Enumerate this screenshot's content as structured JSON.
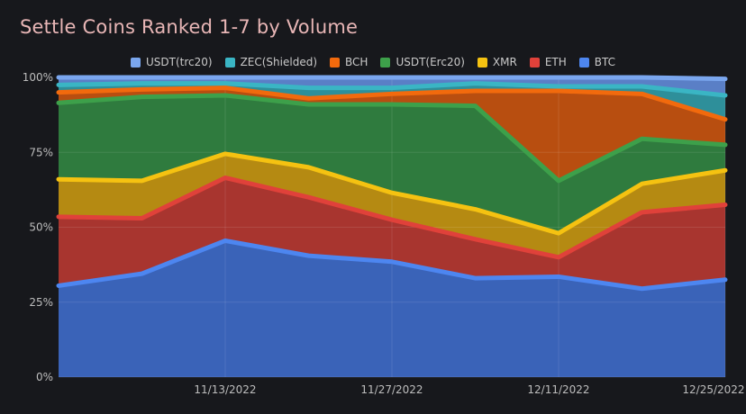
{
  "chart_data": {
    "type": "area",
    "stacked": true,
    "normalized_percent": true,
    "title": "Settle Coins Ranked 1-7 by Volume",
    "xlabel": "",
    "ylabel": "",
    "ylim": [
      0,
      100
    ],
    "y_ticks": [
      "0%",
      "25%",
      "50%",
      "75%",
      "100%"
    ],
    "y_tick_values": [
      0,
      25,
      50,
      75,
      100
    ],
    "x_tick_labels": [
      "11/13/2022",
      "11/27/2022",
      "12/11/2022",
      "12/25/2022"
    ],
    "x_tick_positions": [
      2,
      4,
      6,
      8
    ],
    "x": [
      0,
      1,
      2,
      3,
      4,
      5,
      6,
      7,
      8
    ],
    "legend_position": "top",
    "grid": true,
    "series": [
      {
        "name": "BTC",
        "color": "#4d86f0",
        "fill": "#3a63b8",
        "values": [
          30.5,
          34.5,
          45.5,
          40.5,
          38.5,
          33,
          33.5,
          29.5,
          32.5
        ]
      },
      {
        "name": "ETH",
        "color": "#e0413a",
        "fill": "#a8352f",
        "values": [
          23,
          18.5,
          21,
          19.5,
          14,
          13,
          6.5,
          25.5,
          25
        ]
      },
      {
        "name": "XMR",
        "color": "#f5c211",
        "fill": "#b58a12",
        "values": [
          12.5,
          12.5,
          8,
          10,
          9,
          10,
          8,
          9.5,
          11.5
        ]
      },
      {
        "name": "USDT(Erc20)",
        "color": "#3da04a",
        "fill": "#2f7b3e",
        "values": [
          25.5,
          28,
          19.5,
          21,
          29.5,
          34.5,
          17.5,
          15,
          8.5
        ]
      },
      {
        "name": "BCH",
        "color": "#f26a0d",
        "fill": "#b84e10",
        "values": [
          3.5,
          2.5,
          2.5,
          2,
          3.5,
          5,
          30,
          15,
          8.5
        ]
      },
      {
        "name": "ZEC(Shielded)",
        "color": "#3ab5c4",
        "fill": "#2e8f9a",
        "values": [
          2.5,
          2,
          1.5,
          3.5,
          2,
          2.5,
          1.5,
          2.5,
          8
        ]
      },
      {
        "name": "USDT(trc20)",
        "color": "#7aa6ee",
        "fill": "#5a7fc6",
        "values": [
          2.5,
          2,
          2,
          3.5,
          3.5,
          2,
          3,
          3,
          5.5
        ]
      }
    ]
  },
  "legend_order": [
    "USDT(trc20)",
    "ZEC(Shielded)",
    "BCH",
    "USDT(Erc20)",
    "XMR",
    "ETH",
    "BTC"
  ]
}
